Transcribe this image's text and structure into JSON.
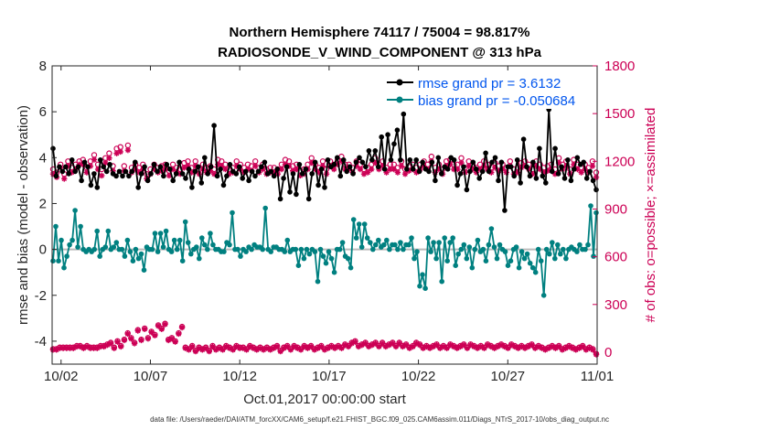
{
  "chart_data": {
    "type": "line",
    "title": "Northern Hemisphere 74117 / 75004 = 98.817%",
    "subtitle": "RADIOSONDE_V_WIND_COMPONENT @ 313 hPa",
    "ylabel": "rmse and bias (model - observation)",
    "y2label": "# of obs: o=possible; ×=assimilated",
    "xlabel": "Oct.01,2017 00:00:00 start",
    "footnote": "data file: /Users/raeder/DAI/ATM_forcXX/CAM6_setup/f.e21.FHIST_BGC.f09_025.CAM6assim.011/Diags_NTrS_2017-10/obs_diag_output.nc",
    "xlim": [
      1.5,
      32.0
    ],
    "ylim": [
      -5,
      8
    ],
    "y2lim": [
      -75,
      1800
    ],
    "x_ticks": [
      2,
      7,
      12,
      17,
      22,
      27,
      32
    ],
    "x_tick_labels": [
      "10/02",
      "10/07",
      "10/12",
      "10/17",
      "10/22",
      "10/27",
      "11/01"
    ],
    "y_ticks": [
      -4,
      -2,
      0,
      2,
      4,
      6,
      8
    ],
    "y_tick_labels": [
      "-4",
      "-2",
      "0",
      "2",
      "4",
      "6",
      "8"
    ],
    "y2_ticks": [
      0,
      300,
      600,
      900,
      1200,
      1500,
      1800
    ],
    "y2_tick_labels": [
      "0",
      "300",
      "600",
      "900",
      "1200",
      "1500",
      "1800"
    ],
    "zero_line": 0,
    "grid": false,
    "legend_position": "top-right",
    "colors": {
      "rmse": "#000000",
      "bias": "#008080",
      "obs": "#cc0055",
      "zero": "#bbbbbb",
      "legend_text": "#0055ee"
    },
    "series": [
      {
        "name": "rmse grand pr = 3.6132",
        "marker": "filled-circle",
        "values": [
          4.4,
          3.2,
          3.6,
          3.4,
          3.6,
          3.3,
          3.9,
          3.4,
          3.6,
          3.0,
          3.8,
          3.6,
          2.8,
          3.3,
          2.7,
          3.9,
          3.6,
          3.4,
          3.7,
          3.3,
          3.2,
          3.4,
          3.2,
          3.4,
          3.2,
          3.4,
          3.8,
          2.7,
          3.3,
          3.6,
          3.0,
          3.3,
          3.7,
          3.4,
          3.6,
          3.2,
          3.7,
          3.5,
          3.0,
          3.3,
          3.8,
          3.3,
          3.1,
          3.5,
          2.7,
          3.4,
          3.6,
          2.9,
          4.0,
          3.3,
          3.6,
          5.4,
          3.2,
          3.5,
          2.8,
          3.2,
          3.7,
          3.4,
          3.3,
          3.6,
          3.1,
          3.4,
          3.0,
          3.4,
          3.2,
          3.4,
          3.6,
          3.8,
          3.3,
          3.4,
          3.2,
          3.5,
          2.2,
          3.1,
          3.6,
          2.5,
          3.3,
          2.4,
          3.7,
          3.3,
          3.5,
          2.2,
          3.3,
          3.8,
          2.8,
          3.5,
          2.7,
          3.9,
          3.6,
          3.7,
          4.0,
          3.2,
          3.9,
          3.4,
          3.6,
          3.3,
          3.8,
          4.0,
          3.8,
          3.6,
          4.3,
          3.9,
          4.3,
          3.6,
          4.9,
          3.5,
          5.0,
          3.9,
          4.6,
          5.2,
          3.9,
          5.9,
          3.5,
          3.9,
          3.5,
          3.9,
          3.4,
          3.8,
          3.5,
          3.4,
          3.8,
          3.0,
          4.0,
          3.3,
          3.6,
          3.5,
          4.0,
          3.9,
          2.8,
          3.3,
          3.6,
          2.6,
          3.4,
          3.8,
          3.5,
          3.1,
          3.4,
          4.2,
          3.4,
          3.8,
          4.0,
          3.0,
          3.8,
          1.7,
          3.6,
          3.6,
          3.2,
          3.9,
          2.9,
          4.8,
          3.6,
          3.2,
          3.8,
          3.1,
          4.4,
          3.2,
          2.9,
          6.1,
          3.4,
          4.4,
          3.3,
          3.6,
          3.1,
          3.9,
          3.0,
          3.5,
          4.0,
          3.7,
          3.8,
          3.1,
          3.4,
          3.0,
          2.6
        ]
      },
      {
        "name": "bias grand pr = -0.050684",
        "marker": "filled-circle",
        "values": [
          -0.5,
          1.0,
          -0.5,
          0.4,
          -0.8,
          -0.3,
          0.2,
          0.4,
          1.7,
          0.1,
          1.0,
          0.0,
          -0.1,
          0.0,
          -0.1,
          0.0,
          0.8,
          -0.3,
          0.0,
          0.1,
          0.8,
          0.0,
          0.1,
          0.3,
          0.0,
          0.0,
          -0.3,
          0.4,
          -0.1,
          -0.5,
          0.0,
          -0.4,
          -0.2,
          -0.9,
          0.1,
          0.0,
          0.0,
          0.7,
          -0.1,
          0.7,
          0.1,
          0.8,
          0.0,
          -0.1,
          0.4,
          0.0,
          0.4,
          -0.5,
          1.2,
          0.3,
          -0.2,
          0.0,
          0.1,
          -0.4,
          0.5,
          0.2,
          0.0,
          0.7,
          0.2,
          0.0,
          0.0,
          -0.1,
          -0.1,
          0.3,
          0.2,
          1.6,
          0.0,
          0.0,
          -0.3,
          0.0,
          -0.1,
          0.1,
          0.0,
          0.2,
          0.1,
          0.1,
          0.0,
          1.8,
          0.0,
          -0.1,
          0.1,
          0.1,
          0.0,
          0.0,
          -0.1,
          0.4,
          -0.1,
          0.0,
          0.0,
          -0.7,
          0.0,
          -0.4,
          0.0,
          -0.2,
          0.0,
          -0.1,
          -1.4,
          0.0,
          -0.3,
          -0.6,
          -0.1,
          -0.4,
          -1.0,
          0.0,
          0.0,
          0.3,
          -0.3,
          -0.4,
          -0.8,
          1.3,
          0.5,
          1.1,
          0.1,
          1.1,
          0.5,
          0.3,
          0.0,
          0.2,
          0.4,
          0.1,
          0.2,
          0.4,
          0.0,
          0.2,
          0.2,
          0.0,
          0.3,
          0.0,
          0.2,
          0.2,
          0.5,
          -0.4,
          -0.1,
          -1.6,
          -1.1,
          -1.7,
          0.5,
          -0.1,
          0.3,
          -0.4,
          0.3,
          -1.4,
          0.5,
          -0.5,
          0.3,
          0.5,
          -0.7,
          -0.2,
          0.0,
          0.2,
          -0.4,
          0.1,
          -0.8,
          0.0,
          0.4,
          -0.1,
          0.0,
          -0.5,
          0.2,
          0.9,
          0.1,
          -0.4,
          0.2,
          0.0,
          -0.1,
          -0.7,
          -0.5,
          0.0,
          0.1,
          -0.8,
          -0.1,
          -0.4,
          -0.2,
          -0.6,
          -0.8,
          -1.0,
          0.0,
          -0.5,
          -2.0,
          0.0,
          -0.2,
          0.3,
          -0.4,
          0.2,
          -0.2,
          0.0,
          -0.4,
          0.0,
          0.1,
          0.0,
          -0.1,
          0.2,
          0.0,
          0.0,
          0.2,
          1.9,
          -0.3,
          1.6
        ]
      },
      {
        "name": "# of obs possible",
        "marker": "circle",
        "axis": "right",
        "values": [
          1150,
          1130,
          1180,
          1120,
          1200,
          1160,
          1180,
          1200,
          1210,
          1160,
          1200,
          1240,
          1180,
          1150,
          1220,
          1250,
          1170,
          1280,
          1290,
          1170,
          1300,
          1160,
          1180,
          1160,
          1180,
          1120,
          1150,
          1180,
          1160,
          1170,
          1180,
          1140,
          1180,
          1160,
          1150,
          1190,
          1200,
          1160,
          1200,
          1150,
          1180,
          1160,
          1170,
          1150,
          1210,
          1200,
          1180,
          1150,
          1160,
          1200,
          1180,
          1160,
          1180,
          1170,
          1200,
          1160,
          1180,
          1150,
          1160,
          1160,
          1150,
          1180,
          1210,
          1200,
          1170,
          1180,
          1140,
          1150,
          1180,
          1220,
          1180,
          1160,
          1200,
          1150,
          1200,
          1180,
          1210,
          1230,
          1180,
          1180,
          1160,
          1200,
          1180,
          1150,
          1160,
          1180,
          1220,
          1180,
          1200,
          1160,
          1180,
          1180,
          1160,
          1200,
          1150,
          1170,
          1180,
          1160,
          1180,
          1200,
          1180,
          1230,
          1160,
          1180,
          1150,
          1200,
          1210,
          1180,
          1180,
          1220,
          1160,
          1200,
          1180,
          1160,
          1180,
          1200,
          1180,
          1160,
          1190,
          1170,
          1180,
          1160,
          1200,
          1150,
          1160,
          1190,
          1200,
          1180,
          1150,
          1200,
          1180,
          1160,
          1170,
          1180,
          1150,
          1220,
          1180,
          1200,
          1150,
          1210,
          1180,
          1160,
          1180,
          1160,
          1200,
          1130
        ]
      },
      {
        "name": "# of obs assimilated",
        "marker": "asterisk",
        "axis": "right",
        "values": [
          1120,
          1100,
          1160,
          1090,
          1170,
          1130,
          1150,
          1180,
          1180,
          1130,
          1170,
          1210,
          1150,
          1110,
          1190,
          1220,
          1140,
          1250,
          1260,
          1140,
          1270,
          1130,
          1150,
          1130,
          1150,
          1090,
          1120,
          1150,
          1130,
          1140,
          1150,
          1110,
          1150,
          1130,
          1120,
          1160,
          1170,
          1130,
          1170,
          1120,
          1150,
          1130,
          1140,
          1120,
          1180,
          1170,
          1150,
          1120,
          1130,
          1170,
          1150,
          1130,
          1150,
          1140,
          1170,
          1130,
          1150,
          1120,
          1130,
          1130,
          1120,
          1150,
          1180,
          1170,
          1140,
          1150,
          1110,
          1120,
          1150,
          1190,
          1150,
          1130,
          1170,
          1120,
          1170,
          1150,
          1180,
          1200,
          1150,
          1150,
          1130,
          1170,
          1150,
          1120,
          1130,
          1150,
          1190,
          1150,
          1170,
          1130,
          1150,
          1150,
          1130,
          1170,
          1120,
          1140,
          1150,
          1130,
          1150,
          1170,
          1150,
          1200,
          1130,
          1150,
          1120,
          1170,
          1180,
          1150,
          1150,
          1190,
          1130,
          1170,
          1150,
          1130,
          1150,
          1170,
          1150,
          1130,
          1160,
          1140,
          1150,
          1130,
          1170,
          1120,
          1130,
          1160,
          1170,
          1150,
          1120,
          1170,
          1150,
          1130,
          1140,
          1150,
          1120,
          1190,
          1150,
          1170,
          1120,
          1180,
          1150,
          1130,
          1150,
          1130,
          1170,
          1100
        ]
      },
      {
        "name": "# of obs possible (low)",
        "marker": "circle",
        "axis": "right",
        "values": [
          20,
          20,
          30,
          30,
          30,
          30,
          30,
          40,
          40,
          30,
          40,
          30,
          30,
          30,
          40,
          40,
          50,
          60,
          30,
          70,
          40,
          80,
          120,
          90,
          60,
          140,
          80,
          150,
          90,
          130,
          110,
          170,
          150,
          180,
          80,
          90,
          70,
          120,
          160,
          30,
          20,
          40,
          10,
          30,
          20,
          30,
          10,
          40,
          20,
          30,
          20,
          40,
          30,
          20,
          40,
          30,
          30,
          20,
          40,
          30,
          20,
          30,
          20,
          30,
          20,
          30,
          40,
          10,
          30,
          40,
          20,
          40,
          30,
          20,
          40,
          30,
          40,
          20,
          30,
          40,
          20,
          30,
          40,
          30,
          40,
          30,
          50,
          40,
          60,
          70,
          40,
          50,
          60,
          40,
          50,
          60,
          40,
          60,
          40,
          50,
          60,
          40,
          60,
          40,
          50,
          30,
          40,
          60,
          50,
          30,
          40,
          30,
          40,
          50,
          30,
          40,
          30,
          50,
          40,
          30,
          40,
          50,
          30,
          50,
          40,
          30,
          40,
          30,
          50,
          40,
          30,
          40,
          50,
          40,
          30,
          50,
          40,
          30,
          40,
          30,
          40,
          50,
          30,
          40,
          30,
          20,
          30,
          40,
          30,
          40,
          20,
          30,
          40,
          30,
          20,
          30,
          40,
          20,
          30,
          20,
          -10
        ]
      },
      {
        "name": "# of obs assimilated (low)",
        "marker": "asterisk",
        "axis": "right",
        "values": [
          15,
          15,
          25,
          25,
          25,
          25,
          25,
          35,
          35,
          25,
          35,
          25,
          25,
          25,
          35,
          35,
          45,
          55,
          25,
          65,
          35,
          75,
          115,
          85,
          55,
          135,
          75,
          145,
          85,
          125,
          105,
          165,
          145,
          175,
          75,
          85,
          65,
          115,
          155,
          25,
          15,
          35,
          5,
          25,
          15,
          25,
          5,
          35,
          15,
          25,
          15,
          35,
          25,
          15,
          35,
          25,
          25,
          15,
          35,
          25,
          15,
          25,
          15,
          25,
          15,
          25,
          35,
          5,
          25,
          35,
          15,
          35,
          25,
          15,
          35,
          25,
          35,
          15,
          25,
          35,
          15,
          25,
          35,
          25,
          35,
          25,
          45,
          35,
          55,
          65,
          35,
          45,
          55,
          35,
          45,
          55,
          35,
          55,
          35,
          45,
          55,
          35,
          55,
          35,
          45,
          25,
          35,
          55,
          45,
          25,
          35,
          25,
          35,
          45,
          25,
          35,
          25,
          45,
          35,
          25,
          35,
          45,
          25,
          45,
          35,
          25,
          35,
          25,
          45,
          35,
          25,
          35,
          45,
          35,
          25,
          45,
          35,
          25,
          35,
          25,
          35,
          45,
          25,
          35,
          25,
          15,
          25,
          35,
          25,
          35,
          15,
          25,
          35,
          25,
          15,
          25,
          35,
          15,
          25,
          15,
          -15
        ]
      }
    ]
  }
}
